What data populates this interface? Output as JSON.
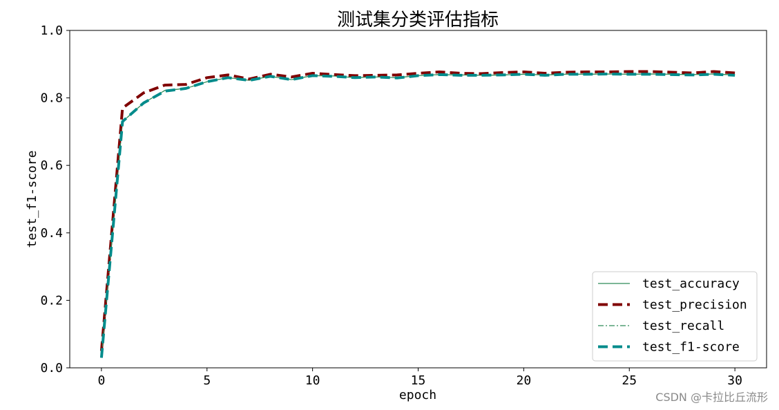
{
  "chart_data": {
    "type": "line",
    "title": "测试集分类评估指标",
    "xlabel": "epoch",
    "ylabel": "test_f1-score",
    "xlim": [
      -1.5,
      31.5
    ],
    "ylim": [
      0.0,
      1.0
    ],
    "x_ticks": [
      0,
      5,
      10,
      15,
      20,
      25,
      30
    ],
    "y_ticks": [
      0.0,
      0.2,
      0.4,
      0.6,
      0.8,
      1.0
    ],
    "y_tick_labels": [
      "0.0",
      "0.2",
      "0.4",
      "0.6",
      "0.8",
      "1.0"
    ],
    "grid": false,
    "legend_position": "lower-right",
    "x": [
      0,
      1,
      2,
      3,
      4,
      5,
      6,
      7,
      8,
      9,
      10,
      11,
      12,
      13,
      14,
      15,
      16,
      17,
      18,
      19,
      20,
      21,
      22,
      23,
      24,
      25,
      26,
      27,
      28,
      29,
      30
    ],
    "series": [
      {
        "name": "test_accuracy",
        "color": "#2e8b57",
        "style": "solid-thin",
        "values": [
          0.03,
          0.73,
          0.785,
          0.822,
          0.828,
          0.848,
          0.86,
          0.852,
          0.864,
          0.854,
          0.866,
          0.865,
          0.86,
          0.862,
          0.86,
          0.866,
          0.869,
          0.868,
          0.867,
          0.868,
          0.87,
          0.868,
          0.87,
          0.87,
          0.871,
          0.87,
          0.871,
          0.87,
          0.869,
          0.871,
          0.868
        ]
      },
      {
        "name": "test_precision",
        "color": "#800000",
        "style": "dashed-thick",
        "values": [
          0.05,
          0.77,
          0.815,
          0.838,
          0.84,
          0.86,
          0.868,
          0.856,
          0.87,
          0.862,
          0.873,
          0.869,
          0.866,
          0.867,
          0.868,
          0.873,
          0.877,
          0.873,
          0.872,
          0.875,
          0.877,
          0.873,
          0.876,
          0.877,
          0.877,
          0.878,
          0.878,
          0.876,
          0.874,
          0.878,
          0.874
        ]
      },
      {
        "name": "test_recall",
        "color": "#2e8b57",
        "style": "dashdot-thin",
        "values": [
          0.03,
          0.73,
          0.785,
          0.822,
          0.828,
          0.848,
          0.86,
          0.852,
          0.864,
          0.854,
          0.866,
          0.865,
          0.86,
          0.862,
          0.86,
          0.866,
          0.869,
          0.868,
          0.867,
          0.868,
          0.87,
          0.868,
          0.87,
          0.87,
          0.871,
          0.87,
          0.871,
          0.87,
          0.869,
          0.871,
          0.868
        ]
      },
      {
        "name": "test_f1-score",
        "color": "#008b8b",
        "style": "dashed-thick",
        "values": [
          0.03,
          0.73,
          0.785,
          0.82,
          0.828,
          0.848,
          0.86,
          0.852,
          0.864,
          0.854,
          0.866,
          0.864,
          0.86,
          0.862,
          0.859,
          0.866,
          0.869,
          0.867,
          0.867,
          0.868,
          0.87,
          0.867,
          0.87,
          0.87,
          0.871,
          0.87,
          0.87,
          0.869,
          0.868,
          0.87,
          0.867
        ]
      }
    ]
  },
  "watermark": "CSDN @卡拉比丘流形"
}
